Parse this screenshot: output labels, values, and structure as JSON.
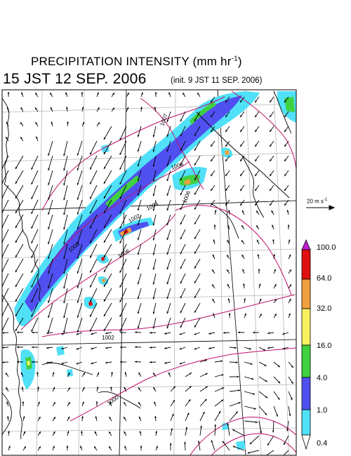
{
  "header": {
    "title": "PRECIPITATION INTENSITY (mm hr",
    "title_sup": "-1",
    "title_end": ")",
    "valid_time": "15 JST 12 SEP. 2006",
    "init_time": "(init. 9 JST 11 SEP. 2006)"
  },
  "wind_scale": {
    "label": "20 m s",
    "label_sup": "-1"
  },
  "isobar_labels": [
    "1007",
    "1004",
    "1006",
    "1002",
    "1006",
    "1002",
    "1000",
    "1006",
    "1006"
  ],
  "colorbar": {
    "levels": [
      "100.0",
      "64.0",
      "32.0",
      "16.0",
      "4.0",
      "1.0",
      "0.4"
    ],
    "colors": {
      "over": "#c020d0",
      "100-": "#e01010",
      "64-100": "#f0a040",
      "32-64": "#f8f060",
      "16-32": "#40d040",
      "4-16": "#5050f0",
      "1-4": "#50e0f8",
      "0.4-1": "#ffffff"
    }
  },
  "colors": {
    "coast": "#000000",
    "isobar": "#c0106a",
    "grid": "#b8b8b8",
    "arrow": "#000000"
  }
}
